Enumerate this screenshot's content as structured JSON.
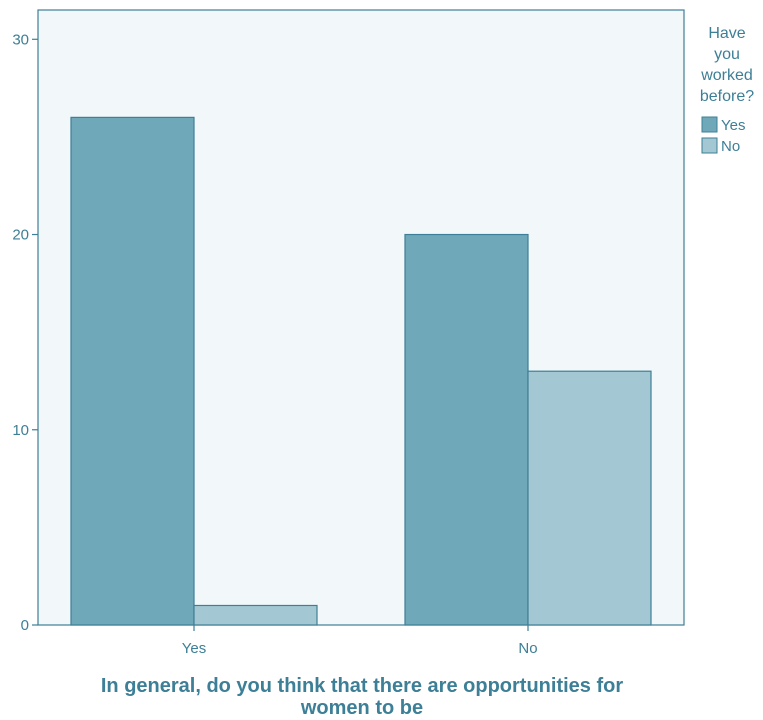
{
  "chart_data": {
    "type": "bar",
    "title": "",
    "xlabel": "In general, do you think that there are opportunities for women to be",
    "ylabel": "",
    "categories": [
      "Yes",
      "No"
    ],
    "series": [
      {
        "name": "Yes",
        "values": [
          26,
          20
        ]
      },
      {
        "name": "No",
        "values": [
          1,
          13
        ]
      }
    ],
    "ylim": [
      0,
      31.5
    ],
    "yticks": [
      0,
      10,
      20,
      30
    ],
    "grid": false,
    "legend": {
      "title": "Have you worked before?",
      "placement": "right"
    },
    "colors": {
      "series_yes": "#6fa9b9",
      "series_no": "#a4c8d3",
      "plot_background": "#f2f7fa",
      "axis": "#3d7f96",
      "text": "#3d7f96"
    }
  }
}
